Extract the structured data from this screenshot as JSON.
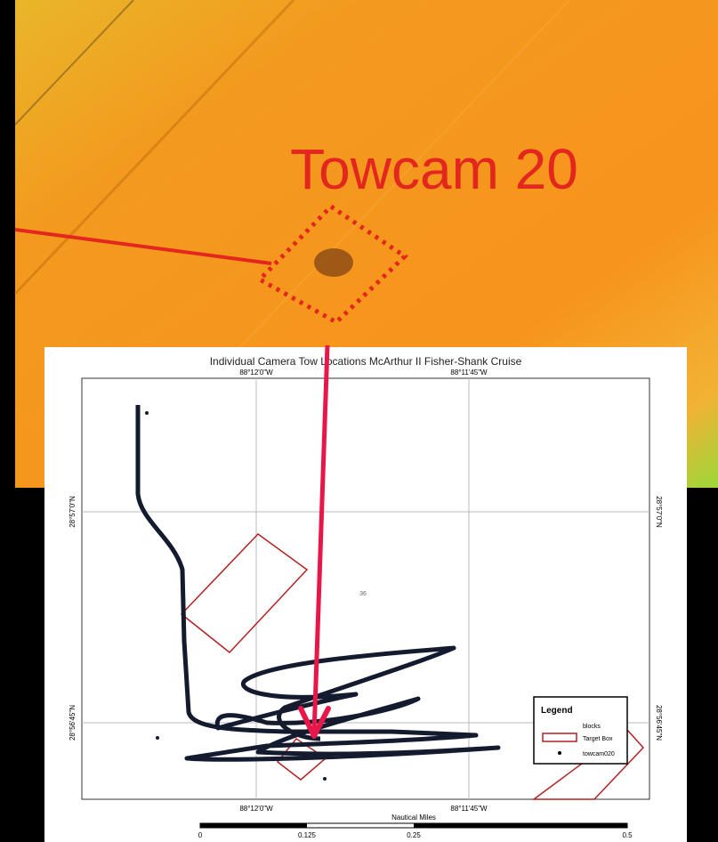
{
  "top_map": {
    "label": "Towcam 20"
  },
  "chart": {
    "title": "Individual Camera Tow Locations McArthur II Fisher-Shank Cruise",
    "top_labels": [
      "88°12'0\"W",
      "88°11'45\"W"
    ],
    "bottom_labels": [
      "88°12'0\"W",
      "88°11'45\"W"
    ],
    "left_labels": [
      "28°57'0\"N",
      "28°56'45\"N"
    ],
    "right_labels": [
      "28°57'0\"N",
      "28°56'45\"N"
    ],
    "block_label": "36",
    "legend": {
      "title": "Legend",
      "items": [
        "blocks",
        "Target Box",
        "towcam020"
      ]
    },
    "scale": {
      "title": "Nautical Miles",
      "labels": [
        "0",
        "0.125",
        "0.25",
        "0.5"
      ]
    }
  }
}
